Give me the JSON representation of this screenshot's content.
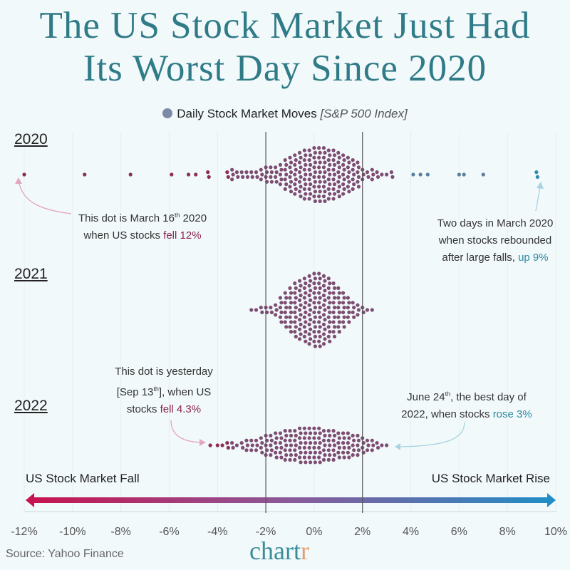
{
  "title_line1": "The US Stock Market Just Had",
  "title_line2": "Its Worst Day Since 2020",
  "legend": {
    "label": "Daily Stock Market Moves",
    "sublabel": "[S&P 500 Index]",
    "color": "#7b8aa6"
  },
  "source": "Source: Yahoo Finance",
  "logo": {
    "main": "chart",
    "accent": "r"
  },
  "colors": {
    "fall": "#c8124e",
    "rise": "#1f8fc6",
    "dot_core": "#7d4d72",
    "dot_neg": "#8d2e52",
    "dot_pos": "#5b7f9e",
    "dot_pos_extreme": "#2b8cb0",
    "title": "#2f7b87"
  },
  "annotations": {
    "march16": {
      "pre": "This dot is March 16",
      "sup": "th",
      "post": " 2020",
      "line2": "when US stocks ",
      "hl": "fell 12%"
    },
    "rebound": {
      "line1": "Two days in March 2020",
      "line2": "when stocks rebounded",
      "line3": "after large falls, ",
      "hl": "up 9%"
    },
    "sep13": {
      "line1": "This dot is yesterday",
      "pre": "[Sep 13",
      "sup": "th",
      "post": "], when US",
      "line3": "stocks ",
      "hl": "fell 4.3%"
    },
    "jun24": {
      "pre": "June 24",
      "sup": "th",
      "post": ", the best day of",
      "line2": "2022, when stocks ",
      "hl": "rose 3%"
    }
  },
  "direction": {
    "fall": "US Stock Market Fall",
    "rise": "US Stock Market Rise"
  },
  "chart_data": {
    "type": "beeswarm",
    "xlabel": "",
    "xlim": [
      -12,
      10
    ],
    "x_ticks": [
      "-12%",
      "-10%",
      "-8%",
      "-6%",
      "-4%",
      "-2%",
      "0%",
      "2%",
      "4%",
      "6%",
      "8%",
      "10%"
    ],
    "reference_lines": [
      -2,
      2
    ],
    "grid": true,
    "unit": "%",
    "series": [
      {
        "name": "2020",
        "bins": [
          [
            -12,
            1
          ],
          [
            -9.5,
            1
          ],
          [
            -7.6,
            1
          ],
          [
            -5.9,
            1
          ],
          [
            -5.2,
            1
          ],
          [
            -4.9,
            1
          ],
          [
            -4.4,
            2
          ],
          [
            -3.6,
            2
          ],
          [
            -3.4,
            3
          ],
          [
            -3.2,
            2
          ],
          [
            -3.0,
            2
          ],
          [
            -2.8,
            2
          ],
          [
            -2.6,
            2
          ],
          [
            -2.4,
            2
          ],
          [
            -2.2,
            3
          ],
          [
            -2.0,
            4
          ],
          [
            -1.8,
            4
          ],
          [
            -1.6,
            4
          ],
          [
            -1.4,
            5
          ],
          [
            -1.2,
            7
          ],
          [
            -1.0,
            8
          ],
          [
            -0.8,
            9
          ],
          [
            -0.6,
            10
          ],
          [
            -0.4,
            11
          ],
          [
            -0.2,
            11
          ],
          [
            0,
            12
          ],
          [
            0.2,
            12
          ],
          [
            0.4,
            12
          ],
          [
            0.6,
            11
          ],
          [
            0.8,
            11
          ],
          [
            1.0,
            10
          ],
          [
            1.2,
            9
          ],
          [
            1.4,
            8
          ],
          [
            1.6,
            7
          ],
          [
            1.8,
            6
          ],
          [
            2.0,
            3
          ],
          [
            2.2,
            2
          ],
          [
            2.4,
            3
          ],
          [
            2.6,
            2
          ],
          [
            2.8,
            1
          ],
          [
            3.0,
            1
          ],
          [
            3.2,
            2
          ],
          [
            4.1,
            1
          ],
          [
            4.4,
            1
          ],
          [
            4.7,
            1
          ],
          [
            6.0,
            1
          ],
          [
            6.2,
            1
          ],
          [
            7.0,
            1
          ],
          [
            9.2,
            2
          ]
        ]
      },
      {
        "name": "2021",
        "bins": [
          [
            -2.6,
            1
          ],
          [
            -2.4,
            1
          ],
          [
            -2.2,
            2
          ],
          [
            -2.0,
            2
          ],
          [
            -1.8,
            2
          ],
          [
            -1.6,
            3
          ],
          [
            -1.4,
            6
          ],
          [
            -1.2,
            8
          ],
          [
            -1.0,
            10
          ],
          [
            -0.8,
            12
          ],
          [
            -0.6,
            13
          ],
          [
            -0.4,
            14
          ],
          [
            -0.2,
            15
          ],
          [
            0,
            16
          ],
          [
            0.2,
            16
          ],
          [
            0.4,
            15
          ],
          [
            0.6,
            14
          ],
          [
            0.8,
            12
          ],
          [
            1.0,
            10
          ],
          [
            1.2,
            8
          ],
          [
            1.4,
            6
          ],
          [
            1.6,
            4
          ],
          [
            1.8,
            3
          ],
          [
            2.0,
            2
          ],
          [
            2.2,
            1
          ],
          [
            2.4,
            1
          ]
        ]
      },
      {
        "name": "2022",
        "bins": [
          [
            -4.3,
            1
          ],
          [
            -4.0,
            1
          ],
          [
            -3.8,
            1
          ],
          [
            -3.6,
            2
          ],
          [
            -3.4,
            2
          ],
          [
            -3.2,
            1
          ],
          [
            -3.0,
            2
          ],
          [
            -2.8,
            3
          ],
          [
            -2.6,
            3
          ],
          [
            -2.4,
            3
          ],
          [
            -2.2,
            4
          ],
          [
            -2.0,
            5
          ],
          [
            -1.8,
            5
          ],
          [
            -1.6,
            6
          ],
          [
            -1.4,
            6
          ],
          [
            -1.2,
            7
          ],
          [
            -1.0,
            7
          ],
          [
            -0.8,
            7
          ],
          [
            -0.6,
            8
          ],
          [
            -0.4,
            8
          ],
          [
            -0.2,
            8
          ],
          [
            0,
            8
          ],
          [
            0.2,
            8
          ],
          [
            0.4,
            7
          ],
          [
            0.6,
            7
          ],
          [
            0.8,
            7
          ],
          [
            1.0,
            6
          ],
          [
            1.2,
            6
          ],
          [
            1.4,
            6
          ],
          [
            1.6,
            5
          ],
          [
            1.8,
            5
          ],
          [
            2.0,
            4
          ],
          [
            2.2,
            3
          ],
          [
            2.4,
            3
          ],
          [
            2.6,
            2
          ],
          [
            2.8,
            1
          ],
          [
            3.0,
            1
          ]
        ]
      }
    ]
  }
}
